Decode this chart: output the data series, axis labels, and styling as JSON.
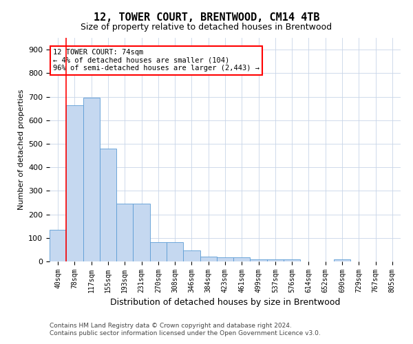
{
  "title1": "12, TOWER COURT, BRENTWOOD, CM14 4TB",
  "title2": "Size of property relative to detached houses in Brentwood",
  "xlabel": "Distribution of detached houses by size in Brentwood",
  "ylabel": "Number of detached properties",
  "categories": [
    "40sqm",
    "78sqm",
    "117sqm",
    "155sqm",
    "193sqm",
    "231sqm",
    "270sqm",
    "308sqm",
    "346sqm",
    "384sqm",
    "423sqm",
    "461sqm",
    "499sqm",
    "537sqm",
    "576sqm",
    "614sqm",
    "652sqm",
    "690sqm",
    "729sqm",
    "767sqm",
    "805sqm"
  ],
  "values": [
    135,
    665,
    695,
    480,
    245,
    245,
    83,
    83,
    47,
    20,
    17,
    17,
    10,
    10,
    8,
    0,
    0,
    8,
    0,
    0,
    0
  ],
  "bar_color": "#c5d8f0",
  "bar_edge_color": "#5b9bd5",
  "property_bin_index": 1,
  "annotation_title": "12 TOWER COURT: 74sqm",
  "annotation_line1": "← 4% of detached houses are smaller (104)",
  "annotation_line2": "96% of semi-detached houses are larger (2,443) →",
  "vline_color": "red",
  "annotation_box_color": "white",
  "annotation_box_edge_color": "red",
  "footnote1": "Contains HM Land Registry data © Crown copyright and database right 2024.",
  "footnote2": "Contains public sector information licensed under the Open Government Licence v3.0.",
  "ylim": [
    0,
    950
  ],
  "yticks": [
    0,
    100,
    200,
    300,
    400,
    500,
    600,
    700,
    800,
    900
  ],
  "background_color": "#ffffff",
  "grid_color": "#c8d4e8",
  "title1_fontsize": 11,
  "title2_fontsize": 9,
  "ylabel_fontsize": 8,
  "xlabel_fontsize": 9,
  "footnote_fontsize": 6.5
}
